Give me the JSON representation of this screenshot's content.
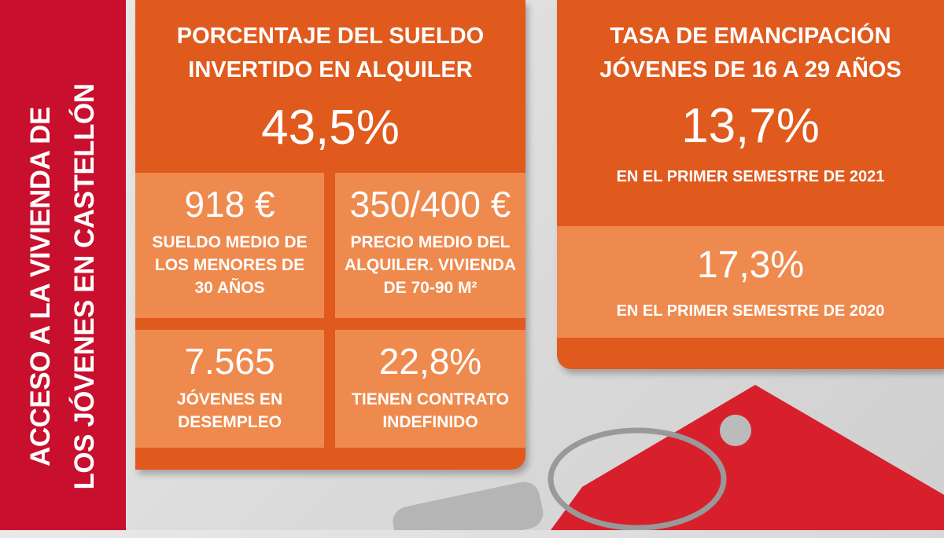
{
  "sidebar": {
    "lines": [
      "ACCESO A LA VIVIENDA DE",
      "LOS JÓVENES EN CASTELLÓN"
    ]
  },
  "rent_card": {
    "title": [
      "PORCENTAJE DEL SUELDO",
      "INVERTIDO EN ALQUILER"
    ],
    "value": "43,5%",
    "tiles": [
      {
        "value": "918 €",
        "description": [
          "SUELDO MEDIO DE",
          "LOS MENORES DE",
          "30 AÑOS"
        ]
      },
      {
        "value": "350/400 €",
        "description": [
          "PRECIO MEDIO DEL",
          "ALQUILER. VIVIENDA",
          "DE 70-90 M²"
        ]
      },
      {
        "value": "7.565",
        "description": [
          "JÓVENES EN",
          "DESEMPLEO"
        ]
      },
      {
        "value": "22,8%",
        "description": [
          "TIENEN CONTRATO",
          "INDEFINIDO"
        ]
      }
    ]
  },
  "emancipation_card": {
    "title": [
      "TASA DE EMANCIPACIÓN",
      "JÓVENES DE 16 A 29 AÑOS"
    ],
    "current": {
      "value": "13,7%",
      "period": "EN EL PRIMER SEMESTRE DE 2021"
    },
    "previous": {
      "value": "17,3%",
      "period": "EN EL PRIMER SEMESTRE DE 2020"
    }
  }
}
